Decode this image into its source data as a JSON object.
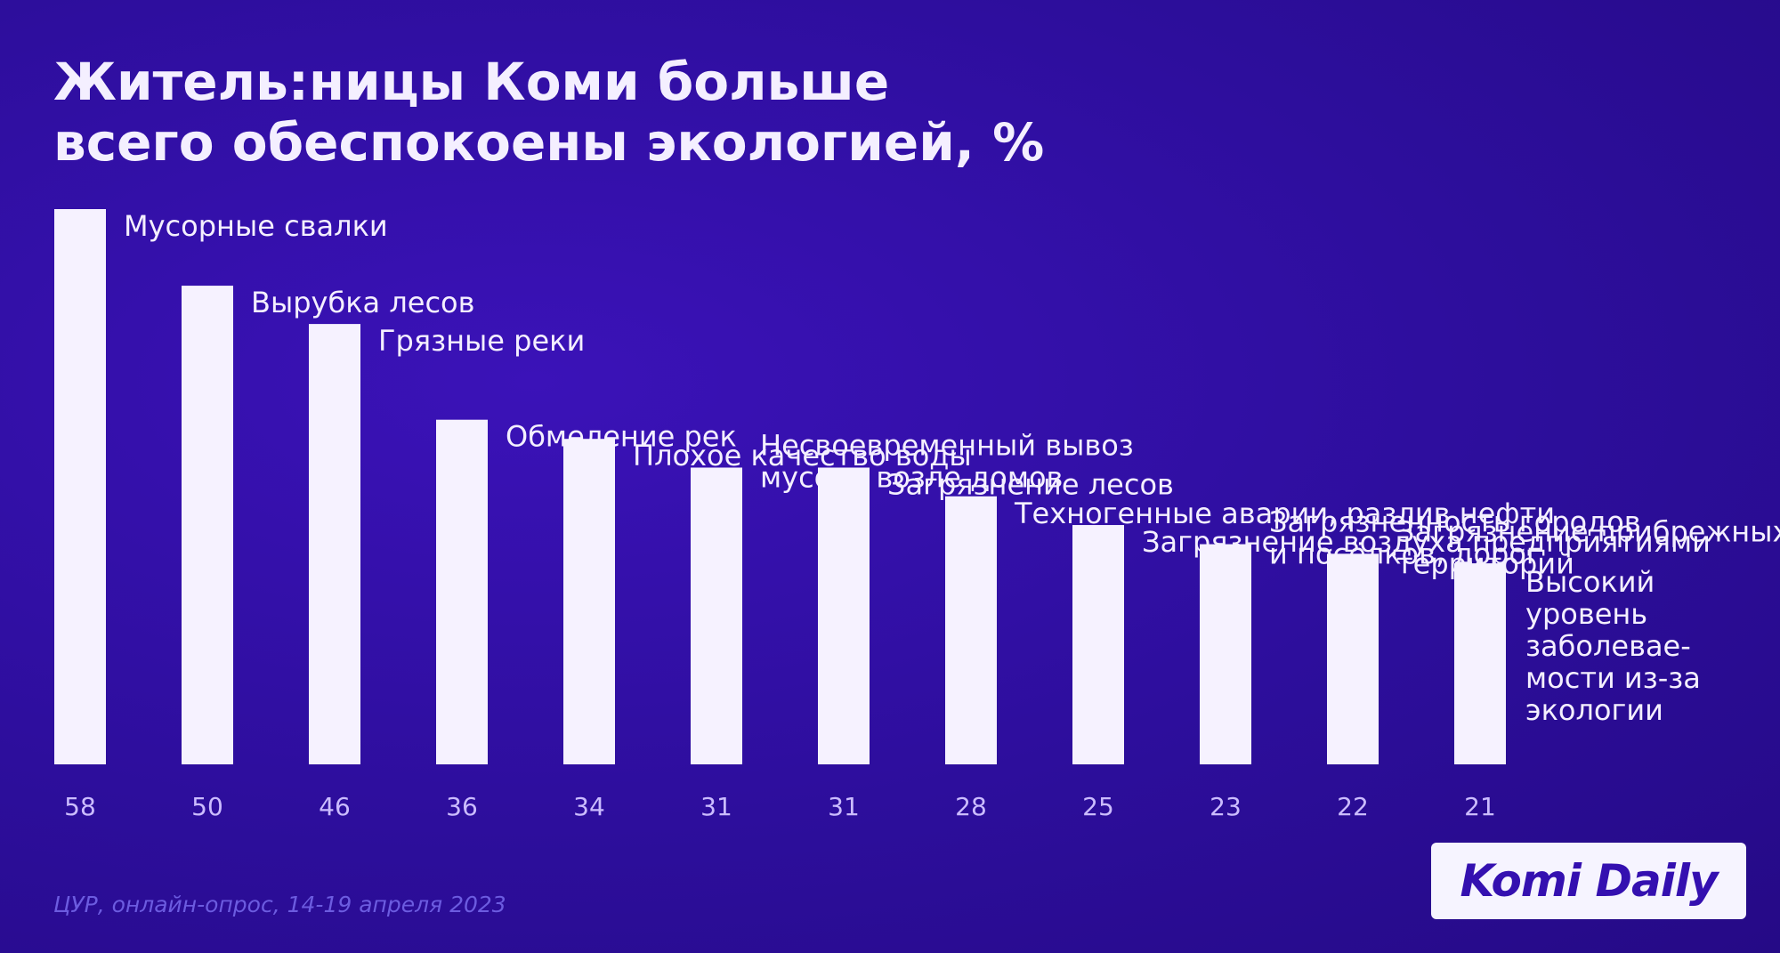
{
  "title": {
    "line1": "Житель:ницы Коми больше",
    "line2": "всего обеспокоены экологией, %"
  },
  "chart_data": {
    "type": "bar",
    "ylim": [
      0,
      58
    ],
    "grid": false,
    "categories": [
      [
        "Мусорные свалки"
      ],
      [
        "Вырубка лесов"
      ],
      [
        "Грязные реки"
      ],
      [
        "Обмеление рек"
      ],
      [
        "Плохое качество воды"
      ],
      [
        "Несвоевременный вывоз",
        "мусора возле домов"
      ],
      [
        "Загрязнение лесов"
      ],
      [
        "Техногенные аварии, разлив нефти"
      ],
      [
        "Загрязнение воздуха предприятиями"
      ],
      [
        "Загрязненность городов",
        "и посёлков, дорог"
      ],
      [
        "Загрязнение прибрежных",
        "территорий"
      ],
      [
        "Высокий",
        "уровень",
        "заболевае-",
        "мости из-за",
        "экологии"
      ]
    ],
    "values": [
      58,
      50,
      46,
      36,
      34,
      31,
      31,
      28,
      25,
      23,
      22,
      21
    ],
    "bar_color": "#f6f2ff"
  },
  "source": "ЦУР, онлайн-опрос, 14-19 апреля 2023",
  "logo": "Komi Daily"
}
